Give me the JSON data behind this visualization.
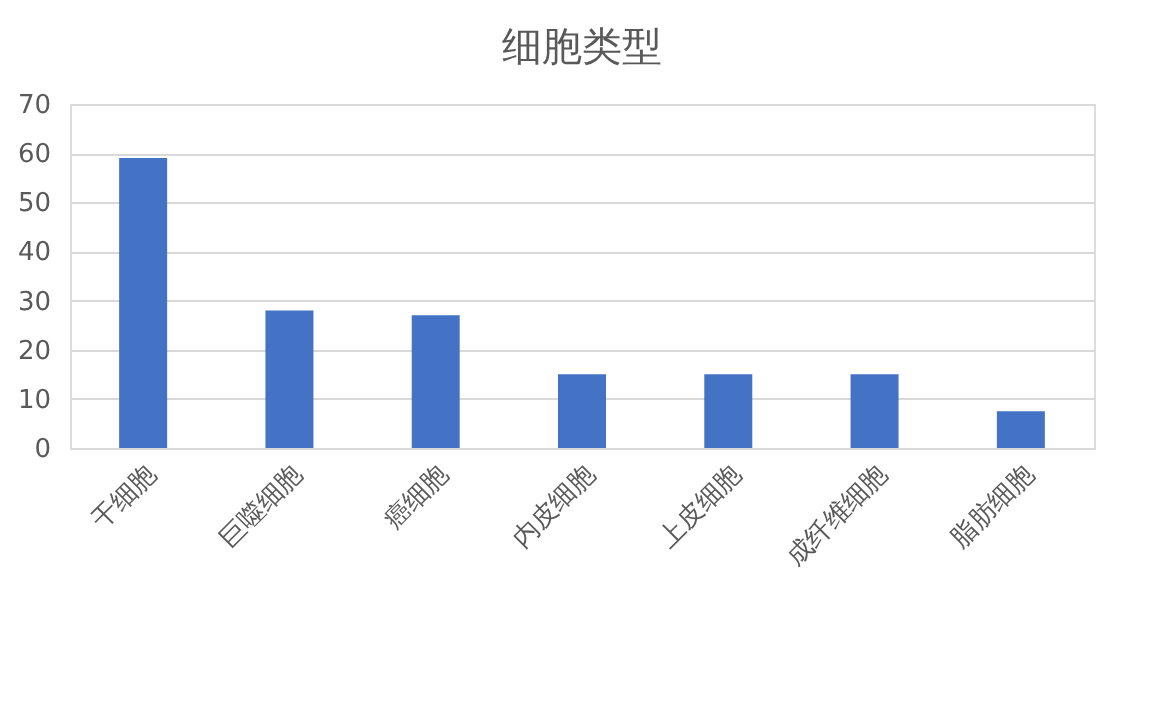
{
  "chart_data": {
    "type": "bar",
    "title": "细胞类型",
    "categories": [
      "干细胞",
      "巨噬细胞",
      "癌细胞",
      "内皮细胞",
      "上皮细胞",
      "成纤维细胞",
      "脂肪细胞"
    ],
    "values": [
      59,
      28,
      27,
      15,
      15,
      15,
      7.5
    ],
    "color": "#4472c4",
    "ylim": [
      0,
      70
    ],
    "yticks": [
      0,
      10,
      20,
      30,
      40,
      50,
      60,
      70
    ],
    "grid": "y"
  }
}
